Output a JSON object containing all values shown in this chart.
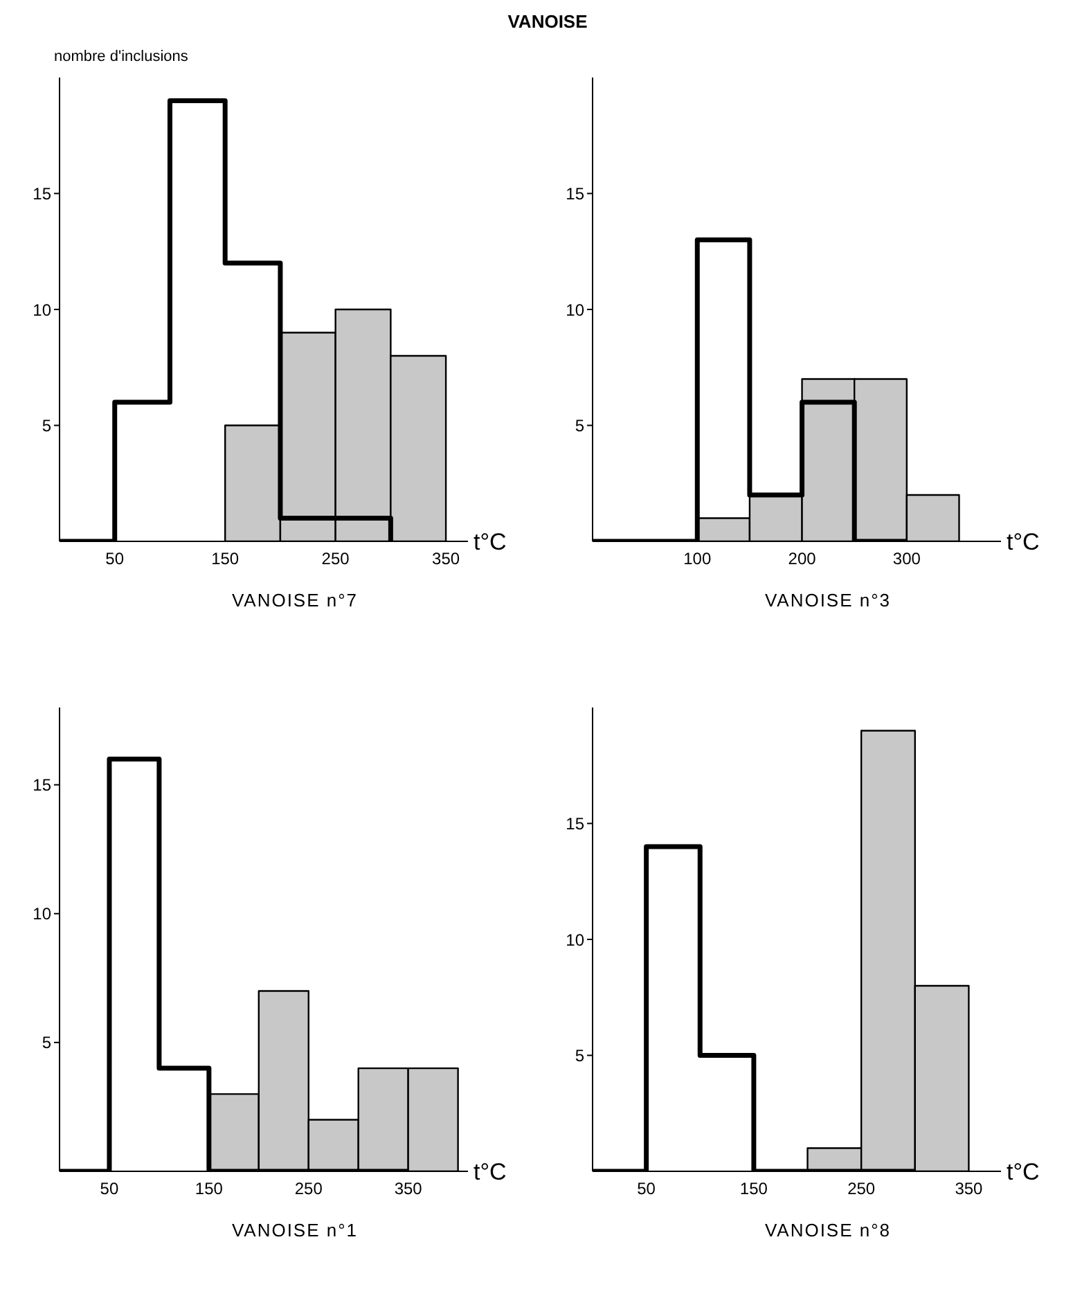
{
  "chart_data": [
    {
      "type": "histogram",
      "title": "VANOISE n°7",
      "annotations": [
        "VANOISE"
      ],
      "ylabel": "nombre d'inclusions",
      "xlabel": "t°C",
      "bins": [
        0,
        50,
        100,
        150,
        200,
        250,
        300,
        350
      ],
      "series": [
        {
          "type": "step",
          "color": "#000000",
          "x": [
            0,
            50,
            100,
            150,
            200,
            250,
            300
          ],
          "values": [
            0,
            6,
            19,
            12,
            1,
            1,
            0
          ]
        },
        {
          "color": "#c8c8c8",
          "values": [
            null,
            null,
            null,
            5,
            9,
            10,
            8
          ]
        }
      ],
      "xlim": [
        0,
        370
      ],
      "xticks": [
        50,
        150,
        250,
        350
      ],
      "ylim": [
        0,
        20
      ],
      "yticks": [
        5,
        10,
        15
      ]
    },
    {
      "type": "histogram",
      "title": "VANOISE n°3",
      "xlabel": "t°C",
      "bins": [
        0,
        50,
        100,
        150,
        200,
        250,
        300,
        350
      ],
      "series": [
        {
          "type": "step",
          "color": "#000000",
          "x": [
            0,
            50,
            100,
            150,
            200,
            250,
            300
          ],
          "values": [
            0,
            0,
            13,
            2,
            6,
            0,
            0
          ]
        },
        {
          "color": "#c8c8c8",
          "values": [
            null,
            null,
            1,
            2,
            7,
            7,
            2
          ]
        }
      ],
      "xlim": [
        0,
        390
      ],
      "xticks": [
        100,
        200,
        300
      ],
      "ylim": [
        0,
        20
      ],
      "yticks": [
        5,
        10,
        15
      ]
    },
    {
      "type": "histogram",
      "title": "VANOISE n°1",
      "xlabel": "t°C",
      "bins": [
        0,
        50,
        100,
        150,
        200,
        250,
        300,
        350,
        400
      ],
      "series": [
        {
          "type": "step",
          "color": "#000000",
          "x": [
            0,
            50,
            100,
            150,
            200,
            250,
            300,
            350
          ],
          "values": [
            0,
            16,
            4,
            0,
            0,
            0,
            0,
            0
          ]
        },
        {
          "color": "#c8c8c8",
          "values": [
            null,
            null,
            null,
            3,
            7,
            2,
            4,
            4
          ]
        }
      ],
      "xlim": [
        0,
        410
      ],
      "xticks": [
        50,
        150,
        250,
        350
      ],
      "ylim": [
        0,
        18
      ],
      "yticks": [
        5,
        10,
        15
      ]
    },
    {
      "type": "histogram",
      "title": "VANOISE n°8",
      "xlabel": "t°C",
      "bins": [
        0,
        50,
        100,
        150,
        200,
        250,
        300,
        350
      ],
      "series": [
        {
          "type": "step",
          "color": "#000000",
          "x": [
            0,
            50,
            100,
            150,
            200,
            250,
            300
          ],
          "values": [
            0,
            14,
            5,
            0,
            0,
            0,
            0
          ]
        },
        {
          "color": "#c8c8c8",
          "values": [
            null,
            null,
            null,
            null,
            1,
            19,
            8
          ]
        }
      ],
      "xlim": [
        0,
        380
      ],
      "xticks": [
        50,
        150,
        250,
        350
      ],
      "ylim": [
        0,
        20
      ],
      "yticks": [
        5,
        10,
        15
      ]
    }
  ]
}
